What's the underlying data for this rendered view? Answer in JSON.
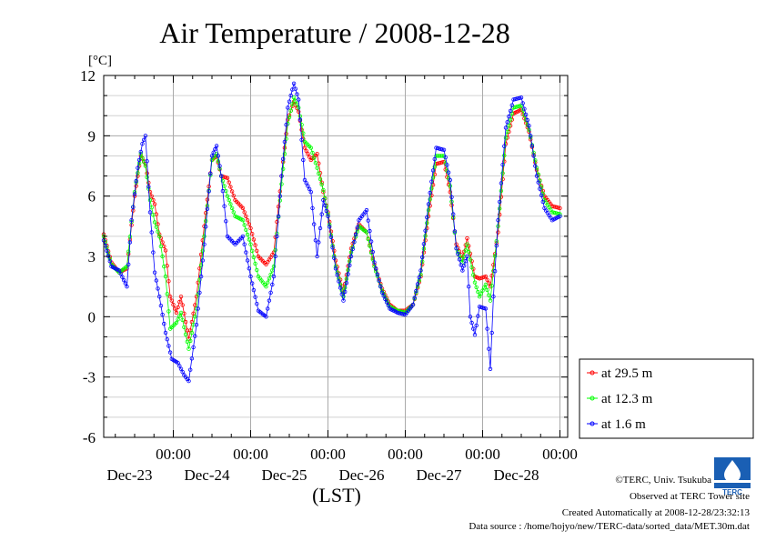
{
  "chart_data": {
    "type": "line",
    "title": "Air Temperature / 2008-12-28",
    "ylabel": "[°C]",
    "xlabel": "(LST)",
    "ylim": [
      -6,
      12
    ],
    "yticks": [
      12,
      9,
      6,
      3,
      0,
      -3,
      -6
    ],
    "xlim_days": [
      -0.9,
      5.1
    ],
    "x_tick_labels": [
      {
        "time": "00:00",
        "date": "Dec-23",
        "day": 0
      },
      {
        "time": "00:00",
        "date": "Dec-24",
        "day": 1
      },
      {
        "time": "00:00",
        "date": "Dec-25",
        "day": 2
      },
      {
        "time": "00:00",
        "date": "Dec-26",
        "day": 3
      },
      {
        "time": "00:00",
        "date": "Dec-27",
        "day": 4
      },
      {
        "time": "00:00",
        "date": "Dec-28",
        "day": 5
      }
    ],
    "grid": true,
    "legend_position": "right",
    "series": [
      {
        "name": "at 29.5 m",
        "color": "#ff0000",
        "points": [
          [
            -0.9,
            4.1
          ],
          [
            -0.8,
            2.7
          ],
          [
            -0.7,
            2.2
          ],
          [
            -0.6,
            2.4
          ],
          [
            -0.5,
            6.0
          ],
          [
            -0.42,
            8.0
          ],
          [
            -0.36,
            7.6
          ],
          [
            -0.3,
            6.2
          ],
          [
            -0.24,
            5.6
          ],
          [
            -0.18,
            4.1
          ],
          [
            -0.1,
            3.3
          ],
          [
            -0.04,
            1.0
          ],
          [
            0.04,
            0.2
          ],
          [
            0.1,
            1.0
          ],
          [
            0.2,
            -1.1
          ],
          [
            0.3,
            1.0
          ],
          [
            0.4,
            4.5
          ],
          [
            0.5,
            7.8
          ],
          [
            0.56,
            8.0
          ],
          [
            0.62,
            7.0
          ],
          [
            0.7,
            6.9
          ],
          [
            0.8,
            5.8
          ],
          [
            0.9,
            5.4
          ],
          [
            1.0,
            4.4
          ],
          [
            1.1,
            3.0
          ],
          [
            1.2,
            2.6
          ],
          [
            1.3,
            3.2
          ],
          [
            1.4,
            7.0
          ],
          [
            1.48,
            9.8
          ],
          [
            1.56,
            10.7
          ],
          [
            1.62,
            10.2
          ],
          [
            1.7,
            8.4
          ],
          [
            1.78,
            7.8
          ],
          [
            1.86,
            8.1
          ],
          [
            1.94,
            6.2
          ],
          [
            2.0,
            5.2
          ],
          [
            2.1,
            2.8
          ],
          [
            2.2,
            1.2
          ],
          [
            2.3,
            3.4
          ],
          [
            2.4,
            4.6
          ],
          [
            2.5,
            4.2
          ],
          [
            2.6,
            2.6
          ],
          [
            2.7,
            1.4
          ],
          [
            2.8,
            0.6
          ],
          [
            2.9,
            0.3
          ],
          [
            3.0,
            0.3
          ],
          [
            3.1,
            0.6
          ],
          [
            3.2,
            2.0
          ],
          [
            3.3,
            5.0
          ],
          [
            3.4,
            7.6
          ],
          [
            3.5,
            7.7
          ],
          [
            3.58,
            6.2
          ],
          [
            3.66,
            3.6
          ],
          [
            3.74,
            2.9
          ],
          [
            3.8,
            3.9
          ],
          [
            3.9,
            2.0
          ],
          [
            3.96,
            1.9
          ],
          [
            4.04,
            2.0
          ],
          [
            4.1,
            1.5
          ],
          [
            4.2,
            4.2
          ],
          [
            4.3,
            8.6
          ],
          [
            4.4,
            10.1
          ],
          [
            4.5,
            10.3
          ],
          [
            4.6,
            9.2
          ],
          [
            4.7,
            7.3
          ],
          [
            4.8,
            6.0
          ],
          [
            4.9,
            5.5
          ],
          [
            5.0,
            5.4
          ]
        ]
      },
      {
        "name": "at 12.3 m",
        "color": "#00ff00",
        "points": [
          [
            -0.9,
            4.0
          ],
          [
            -0.8,
            2.6
          ],
          [
            -0.7,
            2.2
          ],
          [
            -0.6,
            2.5
          ],
          [
            -0.5,
            6.2
          ],
          [
            -0.42,
            8.1
          ],
          [
            -0.36,
            7.5
          ],
          [
            -0.3,
            5.8
          ],
          [
            -0.24,
            4.7
          ],
          [
            -0.18,
            4.0
          ],
          [
            -0.1,
            2.0
          ],
          [
            -0.04,
            -0.6
          ],
          [
            0.04,
            -0.3
          ],
          [
            0.1,
            0.2
          ],
          [
            0.2,
            -1.6
          ],
          [
            0.3,
            0.4
          ],
          [
            0.4,
            4.0
          ],
          [
            0.5,
            7.8
          ],
          [
            0.56,
            8.1
          ],
          [
            0.62,
            7.0
          ],
          [
            0.7,
            6.0
          ],
          [
            0.8,
            5.0
          ],
          [
            0.9,
            4.8
          ],
          [
            1.0,
            3.6
          ],
          [
            1.1,
            2.0
          ],
          [
            1.2,
            1.5
          ],
          [
            1.3,
            2.5
          ],
          [
            1.4,
            6.6
          ],
          [
            1.48,
            9.6
          ],
          [
            1.56,
            10.9
          ],
          [
            1.62,
            10.4
          ],
          [
            1.7,
            8.7
          ],
          [
            1.78,
            8.4
          ],
          [
            1.86,
            7.4
          ],
          [
            1.94,
            6.3
          ],
          [
            2.0,
            5.1
          ],
          [
            2.1,
            2.5
          ],
          [
            2.2,
            1.0
          ],
          [
            2.3,
            3.2
          ],
          [
            2.4,
            4.5
          ],
          [
            2.5,
            4.2
          ],
          [
            2.6,
            2.5
          ],
          [
            2.7,
            1.3
          ],
          [
            2.8,
            0.5
          ],
          [
            2.9,
            0.3
          ],
          [
            3.0,
            0.2
          ],
          [
            3.1,
            0.6
          ],
          [
            3.2,
            2.1
          ],
          [
            3.3,
            5.3
          ],
          [
            3.4,
            8.0
          ],
          [
            3.5,
            8.0
          ],
          [
            3.58,
            6.5
          ],
          [
            3.66,
            3.4
          ],
          [
            3.74,
            2.7
          ],
          [
            3.8,
            3.6
          ],
          [
            3.9,
            1.7
          ],
          [
            3.96,
            1.0
          ],
          [
            4.04,
            1.6
          ],
          [
            4.1,
            0.8
          ],
          [
            4.2,
            4.5
          ],
          [
            4.3,
            8.9
          ],
          [
            4.4,
            10.4
          ],
          [
            4.5,
            10.5
          ],
          [
            4.6,
            9.3
          ],
          [
            4.7,
            7.4
          ],
          [
            4.8,
            5.8
          ],
          [
            4.9,
            5.2
          ],
          [
            5.0,
            5.1
          ]
        ]
      },
      {
        "name": "at 1.6 m",
        "color": "#0000ff",
        "points": [
          [
            -0.9,
            3.8
          ],
          [
            -0.8,
            2.5
          ],
          [
            -0.7,
            2.3
          ],
          [
            -0.6,
            1.5
          ],
          [
            -0.54,
            4.8
          ],
          [
            -0.46,
            7.4
          ],
          [
            -0.4,
            8.6
          ],
          [
            -0.36,
            9.0
          ],
          [
            -0.3,
            5.2
          ],
          [
            -0.24,
            2.2
          ],
          [
            -0.18,
            1.0
          ],
          [
            -0.1,
            -0.8
          ],
          [
            -0.02,
            -2.1
          ],
          [
            0.06,
            -2.3
          ],
          [
            0.14,
            -2.9
          ],
          [
            0.2,
            -3.2
          ],
          [
            0.3,
            -0.4
          ],
          [
            0.4,
            3.6
          ],
          [
            0.5,
            8.0
          ],
          [
            0.56,
            8.5
          ],
          [
            0.62,
            7.0
          ],
          [
            0.7,
            4.0
          ],
          [
            0.8,
            3.6
          ],
          [
            0.9,
            4.0
          ],
          [
            1.0,
            2.0
          ],
          [
            1.1,
            0.3
          ],
          [
            1.2,
            0.0
          ],
          [
            1.3,
            2.0
          ],
          [
            1.4,
            7.0
          ],
          [
            1.48,
            10.4
          ],
          [
            1.56,
            11.6
          ],
          [
            1.62,
            10.8
          ],
          [
            1.7,
            6.8
          ],
          [
            1.78,
            6.2
          ],
          [
            1.86,
            3.0
          ],
          [
            1.94,
            5.8
          ],
          [
            2.0,
            5.0
          ],
          [
            2.1,
            2.4
          ],
          [
            2.2,
            0.8
          ],
          [
            2.3,
            3.0
          ],
          [
            2.4,
            4.8
          ],
          [
            2.5,
            5.3
          ],
          [
            2.6,
            2.7
          ],
          [
            2.7,
            1.2
          ],
          [
            2.8,
            0.4
          ],
          [
            2.9,
            0.2
          ],
          [
            3.0,
            0.1
          ],
          [
            3.1,
            0.6
          ],
          [
            3.2,
            2.3
          ],
          [
            3.3,
            5.6
          ],
          [
            3.4,
            8.4
          ],
          [
            3.5,
            8.3
          ],
          [
            3.58,
            6.8
          ],
          [
            3.66,
            3.4
          ],
          [
            3.74,
            2.3
          ],
          [
            3.8,
            3.0
          ],
          [
            3.84,
            0.0
          ],
          [
            3.9,
            -0.9
          ],
          [
            3.96,
            0.5
          ],
          [
            4.04,
            0.4
          ],
          [
            4.1,
            -2.6
          ],
          [
            4.14,
            1.0
          ],
          [
            4.2,
            4.8
          ],
          [
            4.3,
            9.4
          ],
          [
            4.4,
            10.8
          ],
          [
            4.5,
            10.9
          ],
          [
            4.6,
            9.5
          ],
          [
            4.7,
            7.0
          ],
          [
            4.8,
            5.4
          ],
          [
            4.9,
            4.8
          ],
          [
            5.0,
            5.0
          ]
        ]
      }
    ]
  },
  "footer": {
    "copyright": "©TERC, Univ. Tsukuba",
    "site": "Observed at TERC Tower site",
    "created": "Created Automatically at 2008-12-28/23:32:13",
    "source": "Data source : /home/hojyo/new/TERC-data/sorted_data/MET.30m.dat"
  },
  "logo": {
    "text": "TERC",
    "color": "#1a5fb4"
  }
}
